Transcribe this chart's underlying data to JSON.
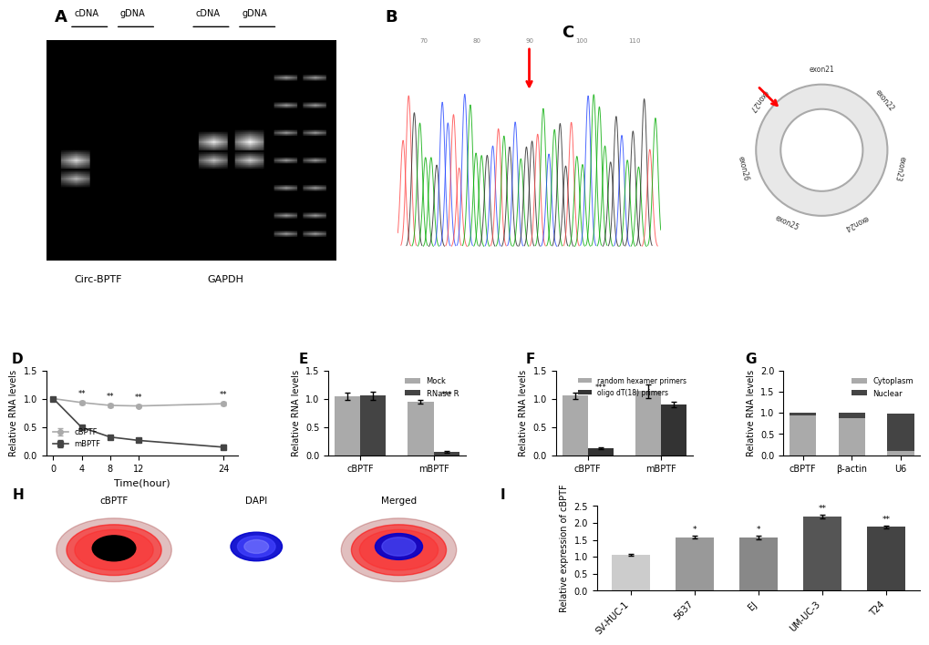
{
  "panel_D": {
    "title": "D",
    "xlabel": "Time(hour)",
    "ylabel": "Relative RNA levels",
    "x": [
      0,
      4,
      8,
      12,
      24
    ],
    "cBPTF": [
      1.0,
      0.93,
      0.88,
      0.87,
      0.91
    ],
    "mBPTF": [
      1.0,
      0.49,
      0.32,
      0.26,
      0.14
    ],
    "cBPTF_err": [
      0.02,
      0.03,
      0.03,
      0.03,
      0.03
    ],
    "mBPTF_err": [
      0.02,
      0.04,
      0.03,
      0.03,
      0.04
    ],
    "cBPTF_color": "#aaaaaa",
    "mBPTF_color": "#444444",
    "ylim": [
      0.0,
      1.5
    ],
    "yticks": [
      0.0,
      0.5,
      1.0,
      1.5
    ],
    "stars": [
      "**",
      "**",
      "**",
      "**"
    ]
  },
  "panel_E": {
    "title": "E",
    "ylabel": "Relative RNA levels",
    "categories": [
      "cBPTF",
      "mBPTF"
    ],
    "mock": [
      1.04,
      0.95
    ],
    "rnaser": [
      1.05,
      0.055
    ],
    "mock_err": [
      0.07,
      0.03
    ],
    "rnaser_err": [
      0.07,
      0.02
    ],
    "mock_color": "#aaaaaa",
    "rnaser_color": "#444444",
    "ylim": [
      0.0,
      1.5
    ],
    "yticks": [
      0.0,
      0.5,
      1.0,
      1.5
    ],
    "stars": [
      "",
      "***"
    ]
  },
  "panel_F": {
    "title": "F",
    "ylabel": "Relative RNA levels",
    "categories": [
      "cBPTF",
      "mBPTF"
    ],
    "random": [
      1.05,
      1.13
    ],
    "oligo": [
      0.12,
      0.89
    ],
    "random_err": [
      0.06,
      0.12
    ],
    "oligo_err": [
      0.02,
      0.05
    ],
    "random_color": "#aaaaaa",
    "oligo_color": "#333333",
    "ylim": [
      0.0,
      1.5
    ],
    "yticks": [
      0.0,
      0.5,
      1.0,
      1.5
    ],
    "stars": [
      "***",
      ""
    ]
  },
  "panel_G": {
    "title": "G",
    "ylabel": "Relative RNA levels",
    "categories": [
      "cBPTF",
      "β-actin",
      "U6"
    ],
    "cytoplasm": [
      0.93,
      0.88,
      0.1
    ],
    "nuclear": [
      0.08,
      0.13,
      0.88
    ],
    "cytoplasm_color": "#aaaaaa",
    "nuclear_color": "#444444",
    "ylim": [
      0.0,
      2.0
    ],
    "yticks": [
      0.0,
      0.5,
      1.0,
      1.5,
      2.0
    ]
  },
  "panel_I": {
    "title": "I",
    "ylabel": "Relative expression of cBPTF",
    "categories": [
      "SV-HUC-1",
      "5637",
      "EJ",
      "UM-UC-3",
      "T24"
    ],
    "values": [
      1.05,
      1.58,
      1.56,
      2.18,
      1.88
    ],
    "errors": [
      0.03,
      0.05,
      0.05,
      0.06,
      0.05
    ],
    "colors": [
      "#cccccc",
      "#999999",
      "#888888",
      "#555555",
      "#444444"
    ],
    "ylim": [
      0.0,
      2.5
    ],
    "yticks": [
      0.0,
      0.5,
      1.0,
      1.5,
      2.0,
      2.5
    ],
    "stars": [
      "",
      "*",
      "*",
      "**",
      "**"
    ]
  }
}
